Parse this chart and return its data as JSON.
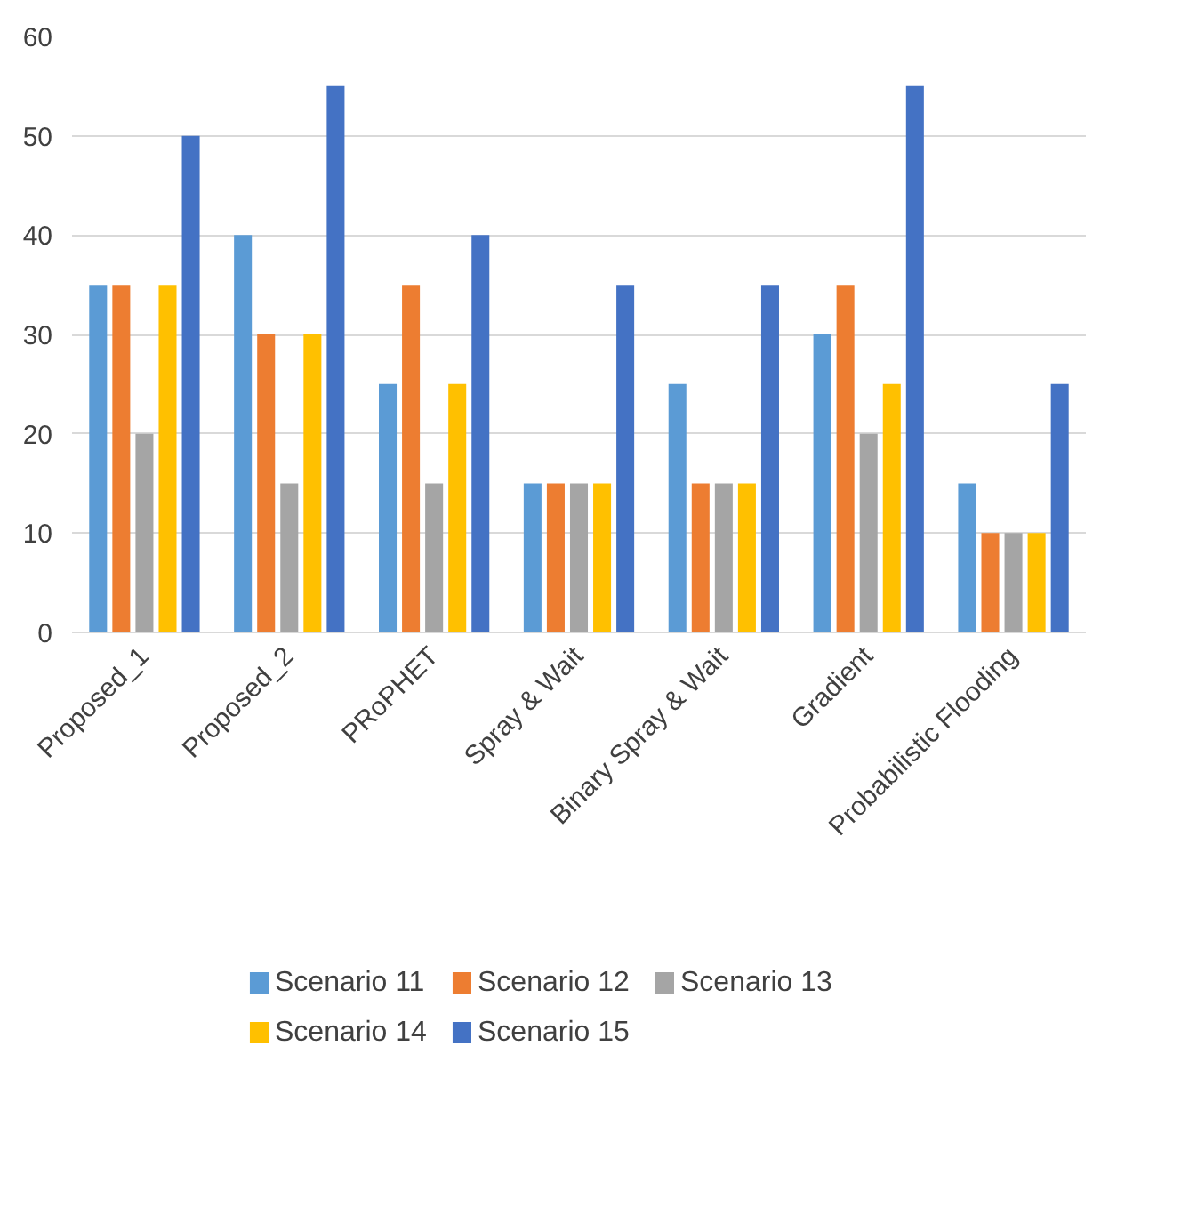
{
  "chart_data": {
    "type": "bar",
    "categories": [
      "Proposed_1",
      "Proposed_2",
      "PRoPHET",
      "Spray & Wait",
      "Binary Spray & Wait",
      "Gradient",
      "Probabilistic Flooding"
    ],
    "series": [
      {
        "name": "Scenario 11",
        "color": "#5b9bd5",
        "values": [
          35,
          40,
          25,
          15,
          25,
          30,
          15
        ]
      },
      {
        "name": "Scenario 12",
        "color": "#ed7d31",
        "values": [
          35,
          30,
          35,
          15,
          15,
          35,
          10
        ]
      },
      {
        "name": "Scenario 13",
        "color": "#a5a5a5",
        "values": [
          20,
          15,
          15,
          15,
          15,
          20,
          10
        ]
      },
      {
        "name": "Scenario 14",
        "color": "#ffc000",
        "values": [
          35,
          30,
          25,
          15,
          15,
          25,
          10
        ]
      },
      {
        "name": "Scenario 15",
        "color": "#4472c4",
        "values": [
          50,
          55,
          40,
          35,
          35,
          55,
          25
        ]
      }
    ],
    "ylim": [
      0,
      60
    ],
    "yticks": [
      0,
      10,
      20,
      30,
      40,
      50,
      60
    ],
    "grid": "y",
    "legend": "bottom"
  }
}
